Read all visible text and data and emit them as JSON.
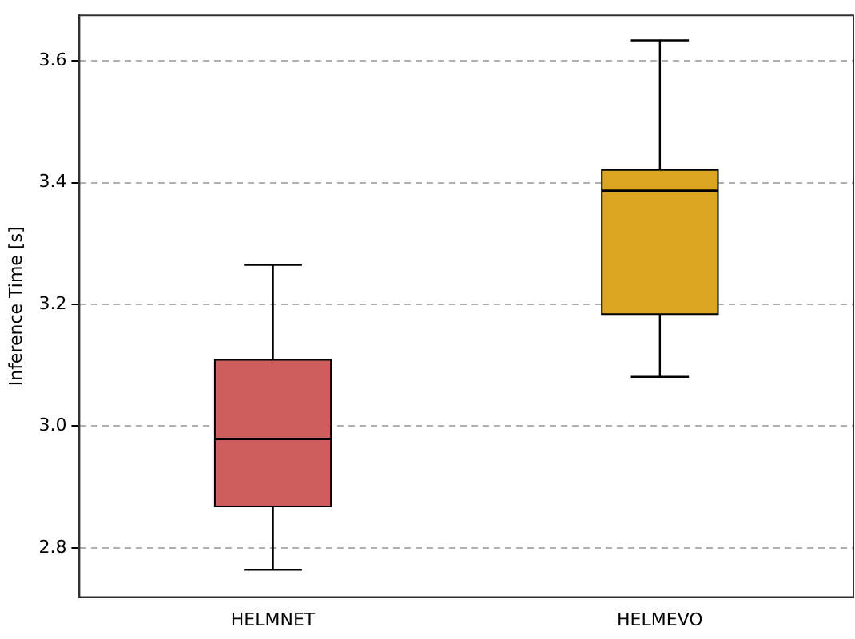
{
  "chart_data": {
    "type": "box",
    "ylabel": "Inference Time [s]",
    "categories": [
      "HELMNET",
      "HELMEVO"
    ],
    "colors": [
      "#cd5c5c",
      "#daa520"
    ],
    "boxes": [
      {
        "low": 2.764,
        "q1": 2.868,
        "median": 2.979,
        "q3": 3.109,
        "high": 3.265
      },
      {
        "low": 3.081,
        "q1": 3.184,
        "median": 3.387,
        "q3": 3.421,
        "high": 3.634
      }
    ],
    "ylim": [
      2.719,
      3.675
    ],
    "yticks": [
      2.8,
      {
        "value": 3,
        "label": "3.0"
      },
      3.2,
      3.4,
      3.6
    ],
    "grid": "y",
    "line_style": "dashed",
    "legend": false
  }
}
